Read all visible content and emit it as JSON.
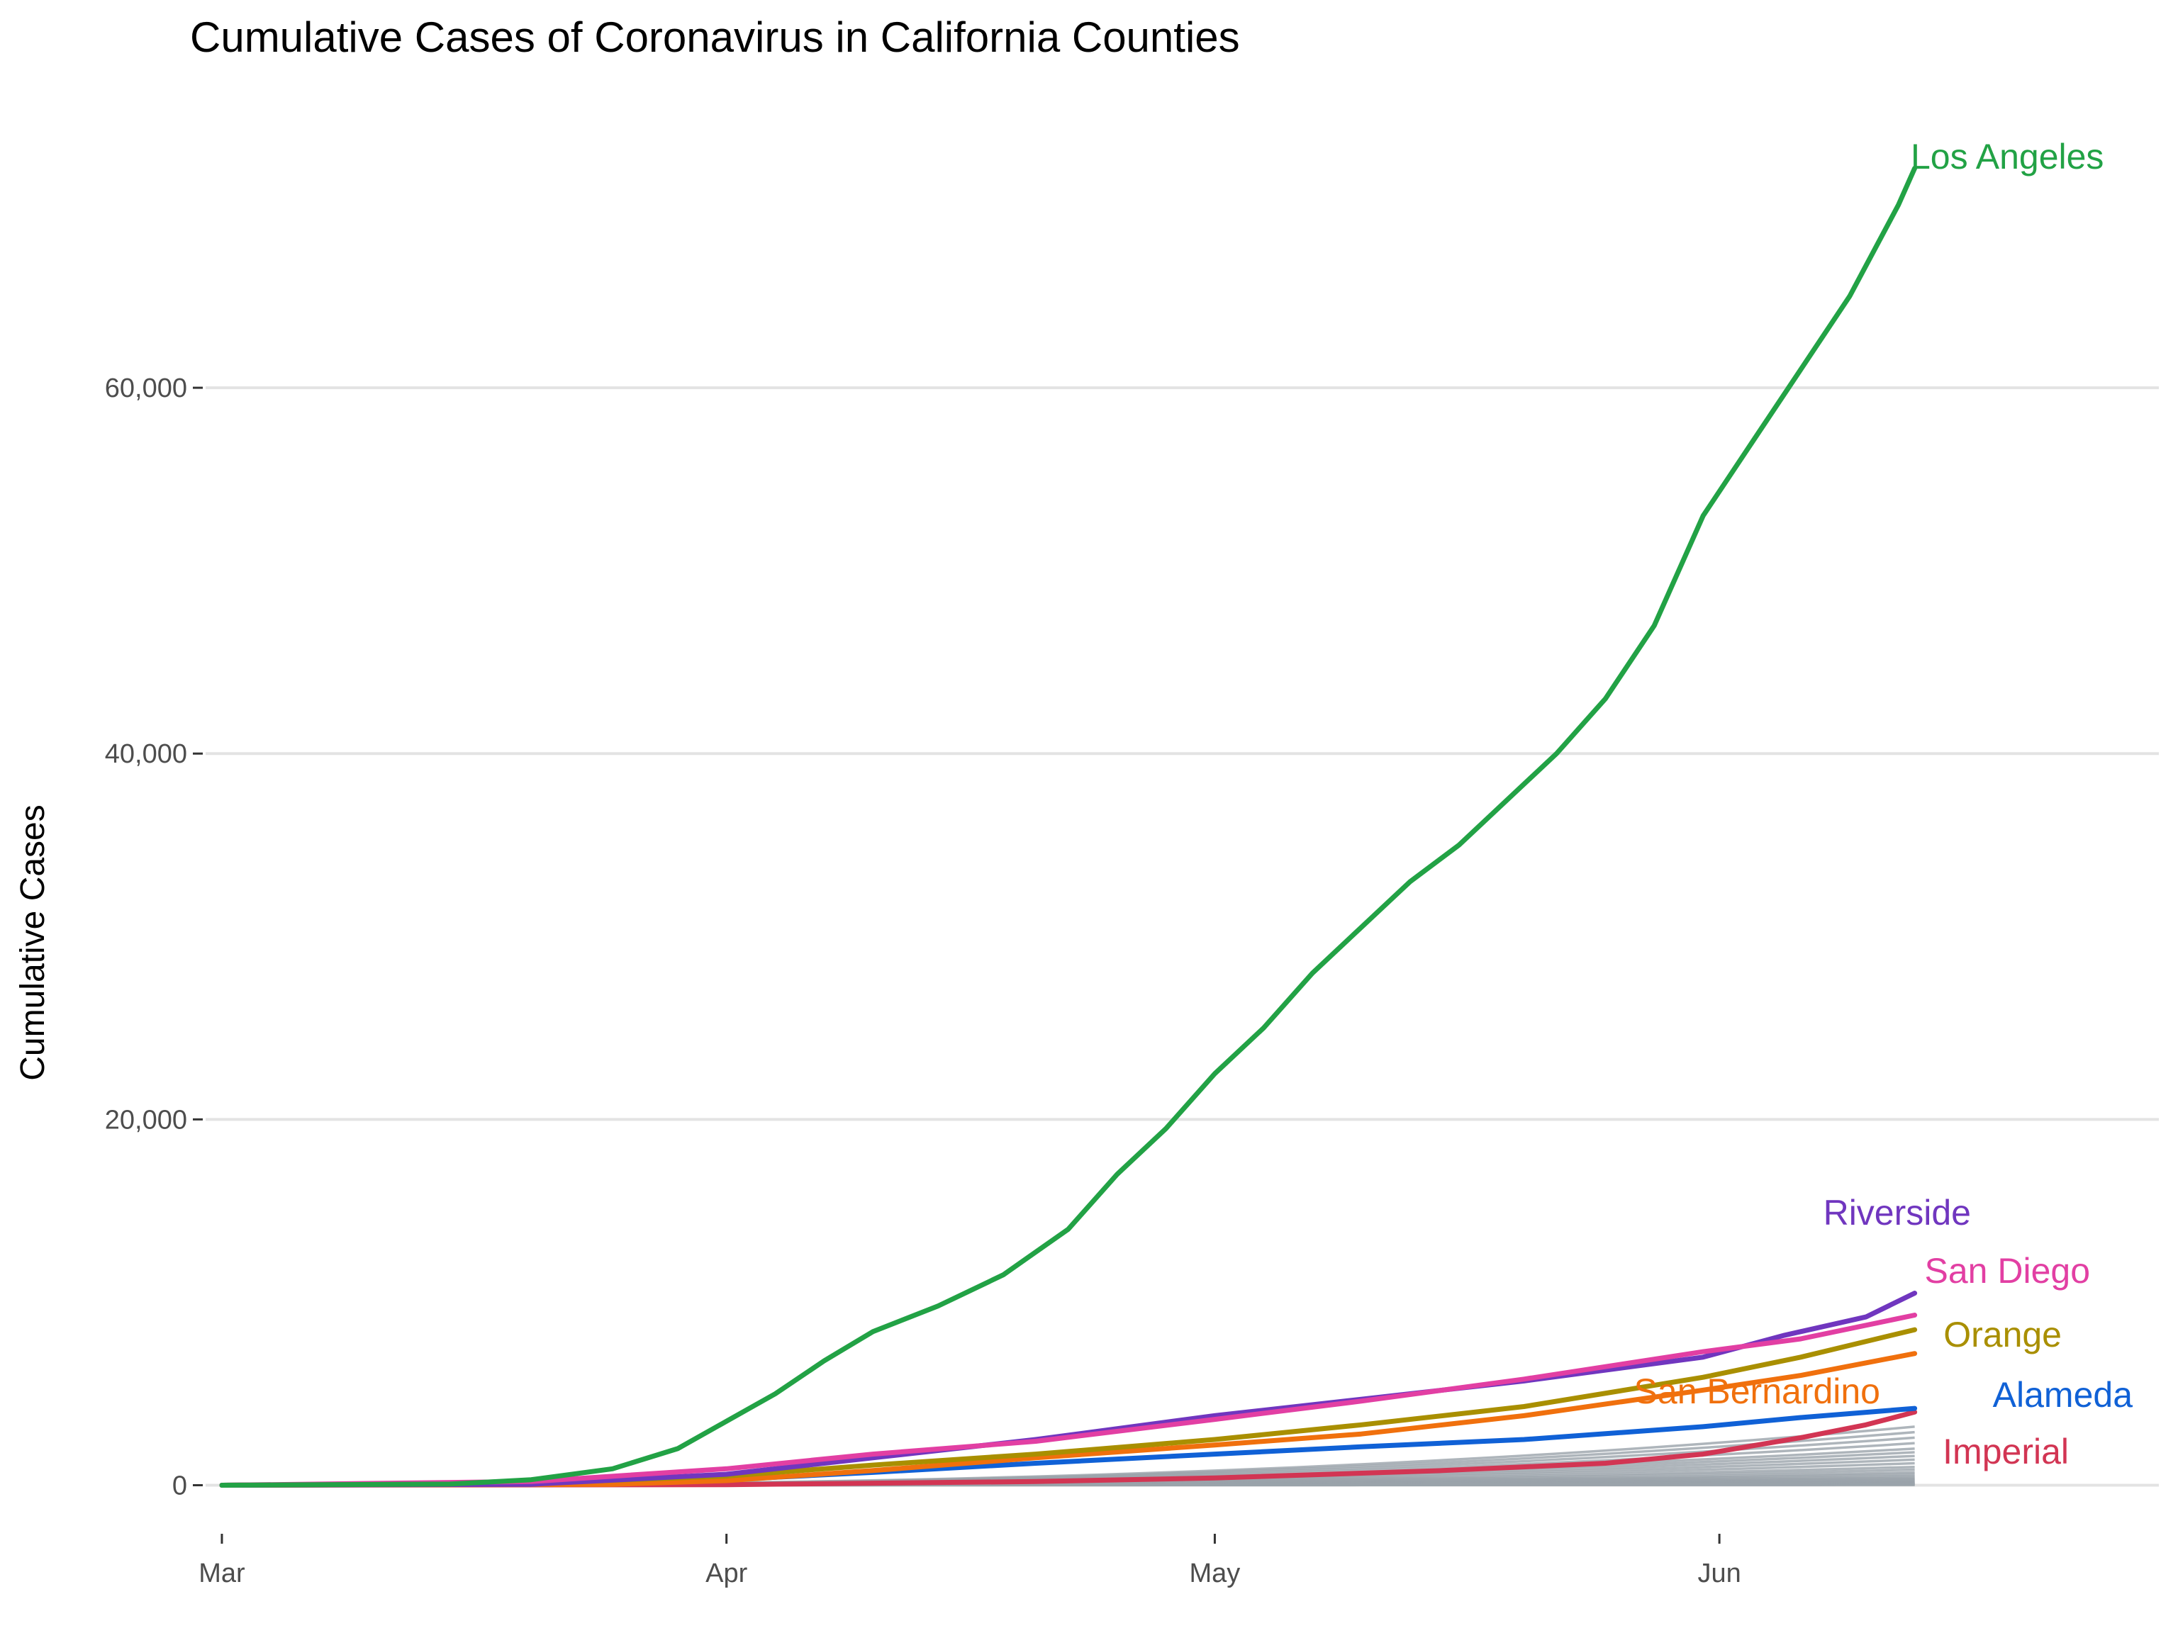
{
  "chart_data": {
    "type": "line",
    "title": "Cumulative Cases of Coronavirus in California Counties",
    "xlabel": "",
    "ylabel": "Cumulative Cases",
    "x_tick_labels": [
      {
        "label": "Mar",
        "date": "2020-03-01"
      },
      {
        "label": "Apr",
        "date": "2020-04-01"
      },
      {
        "label": "May",
        "date": "2020-05-01"
      },
      {
        "label": "Jun",
        "date": "2020-06-01"
      }
    ],
    "xlim": [
      "2020-02-29",
      "2020-06-28"
    ],
    "y_ticks": [
      0,
      20000,
      40000,
      60000
    ],
    "y_tick_labels": [
      "0",
      "20,000",
      "40,000",
      "60,000"
    ],
    "ylim": [
      -2500,
      75000
    ],
    "grid": "horizontal major lines",
    "legend": "direct labels at line ends",
    "highlighted_series": [
      {
        "name": "Los Angeles",
        "color": "#22a245",
        "points": [
          [
            "2020-03-01",
            0
          ],
          [
            "2020-03-15",
            60
          ],
          [
            "2020-03-20",
            300
          ],
          [
            "2020-03-25",
            900
          ],
          [
            "2020-03-29",
            2000
          ],
          [
            "2020-04-01",
            3500
          ],
          [
            "2020-04-04",
            5000
          ],
          [
            "2020-04-07",
            6800
          ],
          [
            "2020-04-10",
            8400
          ],
          [
            "2020-04-14",
            9800
          ],
          [
            "2020-04-18",
            11500
          ],
          [
            "2020-04-22",
            14000
          ],
          [
            "2020-04-25",
            17000
          ],
          [
            "2020-04-28",
            19500
          ],
          [
            "2020-05-01",
            22500
          ],
          [
            "2020-05-04",
            25000
          ],
          [
            "2020-05-07",
            28000
          ],
          [
            "2020-05-10",
            30500
          ],
          [
            "2020-05-13",
            33000
          ],
          [
            "2020-05-16",
            35000
          ],
          [
            "2020-05-19",
            37500
          ],
          [
            "2020-05-22",
            40000
          ],
          [
            "2020-05-25",
            43000
          ],
          [
            "2020-05-28",
            47000
          ],
          [
            "2020-05-31",
            53000
          ],
          [
            "2020-06-03",
            57000
          ],
          [
            "2020-06-06",
            61000
          ],
          [
            "2020-06-09",
            65000
          ],
          [
            "2020-06-12",
            70000
          ],
          [
            "2020-06-13",
            72000
          ]
        ]
      },
      {
        "name": "Riverside",
        "color": "#7036bf",
        "points": [
          [
            "2020-03-01",
            0
          ],
          [
            "2020-03-20",
            50
          ],
          [
            "2020-04-01",
            600
          ],
          [
            "2020-04-10",
            1500
          ],
          [
            "2020-04-20",
            2500
          ],
          [
            "2020-05-01",
            3800
          ],
          [
            "2020-05-10",
            4700
          ],
          [
            "2020-05-20",
            5700
          ],
          [
            "2020-05-31",
            7000
          ],
          [
            "2020-06-05",
            8200
          ],
          [
            "2020-06-10",
            9200
          ],
          [
            "2020-06-13",
            10500
          ]
        ]
      },
      {
        "name": "San Diego",
        "color": "#e23fa3",
        "points": [
          [
            "2020-03-01",
            0
          ],
          [
            "2020-03-20",
            200
          ],
          [
            "2020-04-01",
            900
          ],
          [
            "2020-04-10",
            1700
          ],
          [
            "2020-04-20",
            2400
          ],
          [
            "2020-05-01",
            3600
          ],
          [
            "2020-05-10",
            4600
          ],
          [
            "2020-05-20",
            5800
          ],
          [
            "2020-05-31",
            7300
          ],
          [
            "2020-06-06",
            8000
          ],
          [
            "2020-06-13",
            9300
          ]
        ]
      },
      {
        "name": "Orange",
        "color": "#a98f00",
        "points": [
          [
            "2020-03-01",
            0
          ],
          [
            "2020-03-20",
            100
          ],
          [
            "2020-04-01",
            500
          ],
          [
            "2020-04-10",
            1100
          ],
          [
            "2020-04-20",
            1700
          ],
          [
            "2020-05-01",
            2500
          ],
          [
            "2020-05-10",
            3300
          ],
          [
            "2020-05-20",
            4300
          ],
          [
            "2020-05-31",
            5900
          ],
          [
            "2020-06-06",
            7000
          ],
          [
            "2020-06-13",
            8500
          ]
        ]
      },
      {
        "name": "San Bernardino",
        "color": "#f0700d",
        "points": [
          [
            "2020-03-01",
            0
          ],
          [
            "2020-03-25",
            50
          ],
          [
            "2020-04-01",
            250
          ],
          [
            "2020-04-10",
            800
          ],
          [
            "2020-04-20",
            1500
          ],
          [
            "2020-05-01",
            2200
          ],
          [
            "2020-05-10",
            2800
          ],
          [
            "2020-05-20",
            3800
          ],
          [
            "2020-05-31",
            5200
          ],
          [
            "2020-06-06",
            6000
          ],
          [
            "2020-06-13",
            7200
          ]
        ]
      },
      {
        "name": "Alameda",
        "color": "#1061d6",
        "points": [
          [
            "2020-03-01",
            0
          ],
          [
            "2020-03-20",
            50
          ],
          [
            "2020-04-01",
            300
          ],
          [
            "2020-04-10",
            700
          ],
          [
            "2020-04-20",
            1200
          ],
          [
            "2020-05-01",
            1700
          ],
          [
            "2020-05-10",
            2100
          ],
          [
            "2020-05-20",
            2500
          ],
          [
            "2020-05-31",
            3200
          ],
          [
            "2020-06-06",
            3700
          ],
          [
            "2020-06-13",
            4200
          ]
        ]
      },
      {
        "name": "Imperial",
        "color": "#d23553",
        "points": [
          [
            "2020-03-01",
            0
          ],
          [
            "2020-04-01",
            30
          ],
          [
            "2020-04-20",
            200
          ],
          [
            "2020-05-01",
            400
          ],
          [
            "2020-05-15",
            800
          ],
          [
            "2020-05-25",
            1200
          ],
          [
            "2020-05-31",
            1700
          ],
          [
            "2020-06-06",
            2600
          ],
          [
            "2020-06-10",
            3300
          ],
          [
            "2020-06-13",
            4000
          ]
        ]
      }
    ],
    "other_counties_color": "#9aa2aa",
    "other_counties_end_values": [
      3200,
      2900,
      2600,
      2300,
      2000,
      1800,
      1600,
      1400,
      1200,
      1000,
      850,
      700,
      600,
      500,
      420,
      350,
      300,
      250,
      200,
      160,
      130,
      100,
      80,
      60,
      40,
      25,
      15
    ]
  }
}
